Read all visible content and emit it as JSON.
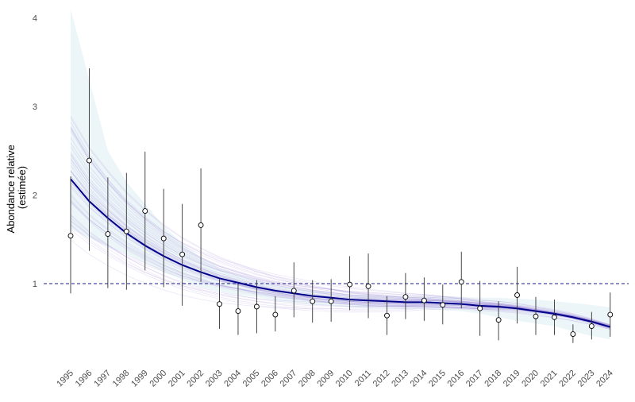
{
  "chart_data": {
    "type": "scatter",
    "title": "",
    "ylabel_lines": [
      "Abondance relative",
      "(estimée)"
    ],
    "xlabel": "",
    "grid": false,
    "ylim": [
      0.3,
      4.1
    ],
    "yticks": [
      1,
      2,
      3,
      4
    ],
    "reference_line": {
      "y": 1,
      "color": "#1a1a8c",
      "style": "dashed"
    },
    "colors": {
      "trend": "#00008b",
      "band": "#d4e8f0",
      "draws": "#9b7fd4",
      "error_bar": "#333333",
      "point_fill": "#ffffff"
    },
    "x": [
      1995,
      1996,
      1997,
      1998,
      1999,
      2000,
      2001,
      2002,
      2003,
      2004,
      2005,
      2006,
      2007,
      2008,
      2009,
      2010,
      2011,
      2012,
      2013,
      2014,
      2015,
      2016,
      2017,
      2018,
      2019,
      2020,
      2021,
      2022,
      2023,
      2024
    ],
    "points": [
      1.54,
      2.39,
      1.56,
      1.59,
      1.82,
      1.51,
      1.33,
      1.66,
      0.77,
      0.69,
      0.74,
      0.65,
      0.92,
      0.8,
      0.8,
      0.99,
      0.97,
      0.64,
      0.85,
      0.81,
      0.76,
      1.02,
      0.72,
      0.59,
      0.87,
      0.63,
      0.62,
      0.43,
      0.52,
      0.65
    ],
    "lower": [
      0.89,
      1.37,
      0.95,
      0.93,
      1.15,
      0.96,
      0.75,
      1.02,
      0.49,
      0.42,
      0.44,
      0.46,
      0.62,
      0.56,
      0.57,
      0.7,
      0.61,
      0.42,
      0.6,
      0.58,
      0.54,
      0.72,
      0.41,
      0.36,
      0.55,
      0.42,
      0.42,
      0.33,
      0.37,
      0.4
    ],
    "upper": [
      2.21,
      3.43,
      2.2,
      2.25,
      2.49,
      2.07,
      1.9,
      2.3,
      1.05,
      1.0,
      1.04,
      0.86,
      1.24,
      1.04,
      1.05,
      1.31,
      1.34,
      0.86,
      1.12,
      1.07,
      0.99,
      1.36,
      1.03,
      0.8,
      1.19,
      0.85,
      0.82,
      0.54,
      0.68,
      0.9
    ],
    "trend": [
      2.18,
      1.93,
      1.74,
      1.57,
      1.43,
      1.31,
      1.21,
      1.13,
      1.06,
      1.01,
      0.96,
      0.92,
      0.89,
      0.86,
      0.84,
      0.82,
      0.81,
      0.8,
      0.79,
      0.79,
      0.78,
      0.77,
      0.75,
      0.74,
      0.72,
      0.69,
      0.66,
      0.62,
      0.57,
      0.51
    ],
    "band_lower": [
      1.62,
      1.51,
      1.42,
      1.33,
      1.23,
      1.13,
      1.04,
      0.96,
      0.91,
      0.87,
      0.85,
      0.81,
      0.78,
      0.76,
      0.75,
      0.73,
      0.72,
      0.72,
      0.71,
      0.71,
      0.7,
      0.69,
      0.66,
      0.62,
      0.58,
      0.55,
      0.52,
      0.46,
      0.41,
      0.37
    ],
    "band_upper": [
      4.1,
      3.3,
      2.5,
      2.15,
      1.9,
      1.65,
      1.45,
      1.3,
      1.18,
      1.1,
      1.04,
      0.99,
      0.95,
      0.92,
      0.9,
      0.88,
      0.87,
      0.86,
      0.86,
      0.86,
      0.86,
      0.85,
      0.84,
      0.84,
      0.83,
      0.82,
      0.8,
      0.78,
      0.76,
      0.73
    ]
  }
}
